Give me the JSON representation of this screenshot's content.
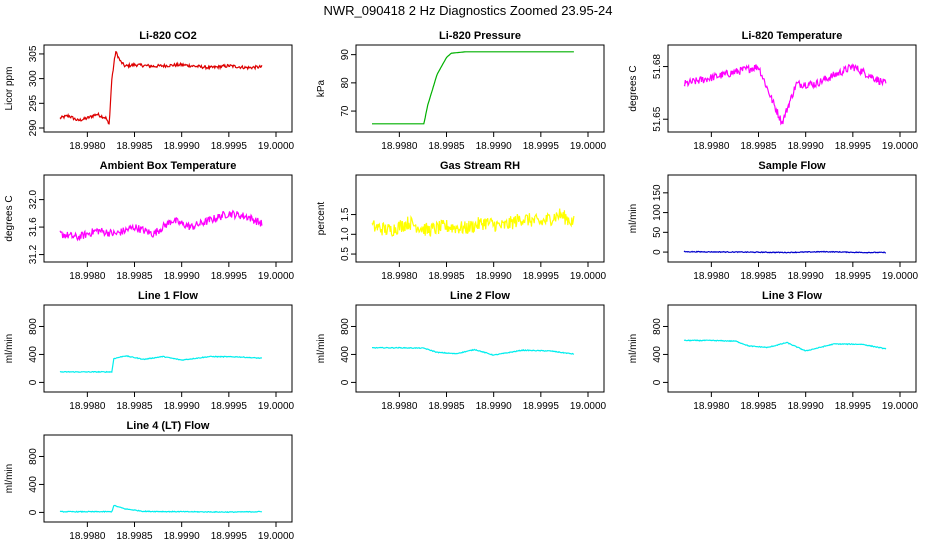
{
  "figure_title": "NWR_090418  2 Hz Diagnostics Zoomed 23.95-24",
  "colors": {
    "red": "#dd0000",
    "green": "#00b000",
    "magenta": "#ff00ff",
    "yellow": "#ffff00",
    "blue": "#0000cc",
    "cyan": "#00eeee"
  },
  "chart_data": [
    {
      "type": "line",
      "title": "Li-820 CO2",
      "ylabel": "Licor ppm",
      "color": "red",
      "xlim": [
        18.99771,
        19.0
      ],
      "ylim": [
        290,
        306
      ],
      "xticks": [
        "18.9980",
        "18.9985",
        "18.9990",
        "18.9995",
        "19.0000"
      ],
      "yticks": [
        "290",
        "295",
        "300",
        "305"
      ],
      "x": [
        18.99771,
        18.9978,
        18.9979,
        18.998,
        18.9981,
        18.9982,
        18.99823,
        18.99826,
        18.9983,
        18.99835,
        18.9984,
        18.9985,
        18.9987,
        18.999,
        18.9993,
        18.9995,
        18.9997,
        18.99985
      ],
      "y": [
        292,
        292.5,
        291.5,
        292,
        292.8,
        292,
        290.5,
        300,
        305.5,
        303.5,
        302.5,
        302.8,
        302.5,
        302.8,
        302.2,
        302.6,
        302.2,
        302.4
      ]
    },
    {
      "type": "line",
      "title": "Li-820 Pressure",
      "ylabel": "kPa",
      "color": "green",
      "xlim": [
        18.99771,
        19.0
      ],
      "ylim": [
        64,
        92
      ],
      "xticks": [
        "18.9980",
        "18.9985",
        "18.9990",
        "18.9995",
        "19.0000"
      ],
      "yticks": [
        "70",
        "80",
        "90"
      ],
      "x": [
        18.99771,
        18.998,
        18.99826,
        18.9983,
        18.9984,
        18.9985,
        18.99855,
        18.9987,
        18.999,
        18.9995,
        18.99985
      ],
      "y": [
        65.5,
        65.5,
        65.5,
        72,
        83,
        89,
        90.5,
        91,
        91,
        91,
        91
      ]
    },
    {
      "type": "line",
      "title": "Li-820 Temperature",
      "ylabel": "degrees C",
      "color": "magenta",
      "xlim": [
        18.99771,
        19.0
      ],
      "ylim": [
        51.645,
        51.69
      ],
      "xticks": [
        "18.9980",
        "18.9985",
        "18.9990",
        "18.9995",
        "19.0000"
      ],
      "yticks": [
        "51.65",
        "51.68"
      ],
      "x": [
        18.99771,
        18.9985,
        18.99865,
        18.99875,
        18.9989,
        18.9991,
        18.9995,
        18.99985
      ],
      "y": [
        51.67,
        51.68,
        51.66,
        51.648,
        51.67,
        51.67,
        51.68,
        51.67
      ]
    },
    {
      "type": "line",
      "title": "Ambient Box Temperature",
      "ylabel": "degrees C",
      "color": "magenta",
      "xlim": [
        18.99771,
        19.0
      ],
      "ylim": [
        31.15,
        32.3
      ],
      "xticks": [
        "18.9980",
        "18.9985",
        "18.9990",
        "18.9995",
        "19.0000"
      ],
      "yticks": [
        "31.2",
        "31.6",
        "32.0"
      ],
      "x": [
        18.99771,
        18.9979,
        18.9981,
        18.9983,
        18.9985,
        18.9987,
        18.9989,
        18.9991,
        18.9993,
        18.9995,
        18.9997,
        18.99985
      ],
      "y": [
        31.5,
        31.45,
        31.55,
        31.5,
        31.6,
        31.5,
        31.7,
        31.6,
        31.7,
        31.8,
        31.75,
        31.65
      ]
    },
    {
      "type": "line",
      "title": "Gas Stream RH",
      "ylabel": "percent",
      "color": "yellow",
      "xlim": [
        18.99771,
        19.0
      ],
      "ylim": [
        0.4,
        2.4
      ],
      "xticks": [
        "18.9980",
        "18.9985",
        "18.9990",
        "18.9995",
        "19.0000"
      ],
      "yticks": [
        "0.5",
        "1.0",
        "1.5"
      ],
      "x": [
        18.99771,
        18.9979,
        18.9981,
        18.9983,
        18.9985,
        18.9987,
        18.9989,
        18.9991,
        18.9993,
        18.9995,
        18.9997,
        18.99985
      ],
      "y": [
        1.2,
        1.1,
        1.3,
        1.1,
        1.2,
        1.15,
        1.3,
        1.2,
        1.4,
        1.3,
        1.5,
        1.3
      ]
    },
    {
      "type": "line",
      "title": "Sample Flow",
      "ylabel": "ml/min",
      "color": "blue",
      "xlim": [
        18.99771,
        19.0
      ],
      "ylim": [
        -15,
        185
      ],
      "xticks": [
        "18.9980",
        "18.9985",
        "18.9990",
        "18.9995",
        "19.0000"
      ],
      "yticks": [
        "0",
        "50",
        "100",
        "150"
      ],
      "x": [
        18.99771,
        18.9983,
        18.9988,
        18.9992,
        18.9996,
        18.99985
      ],
      "y": [
        1,
        0,
        -1,
        1,
        -1,
        -1
      ]
    },
    {
      "type": "line",
      "title": "Line 1 Flow",
      "ylabel": "ml/min",
      "color": "cyan",
      "xlim": [
        18.99771,
        19.0
      ],
      "ylim": [
        -80,
        1050
      ],
      "xticks": [
        "18.9980",
        "18.9985",
        "18.9990",
        "18.9995",
        "19.0000"
      ],
      "yticks": [
        "0",
        "400",
        "800"
      ],
      "x": [
        18.99771,
        18.998,
        18.99826,
        18.99828,
        18.9984,
        18.9986,
        18.9988,
        18.999,
        18.9993,
        18.9996,
        18.99985
      ],
      "y": [
        150,
        150,
        150,
        340,
        380,
        330,
        370,
        320,
        370,
        365,
        345
      ]
    },
    {
      "type": "line",
      "title": "Line 2 Flow",
      "ylabel": "ml/min",
      "color": "cyan",
      "xlim": [
        18.99771,
        19.0
      ],
      "ylim": [
        -80,
        1050
      ],
      "xticks": [
        "18.9980",
        "18.9985",
        "18.9990",
        "18.9995",
        "19.0000"
      ],
      "yticks": [
        "0",
        "400",
        "800"
      ],
      "x": [
        18.99771,
        18.998,
        18.99826,
        18.9984,
        18.9986,
        18.9988,
        18.999,
        18.9993,
        18.9996,
        18.99985
      ],
      "y": [
        495,
        495,
        490,
        430,
        410,
        470,
        390,
        460,
        450,
        405
      ]
    },
    {
      "type": "line",
      "title": "Line 3 Flow",
      "ylabel": "ml/min",
      "color": "cyan",
      "xlim": [
        18.99771,
        19.0
      ],
      "ylim": [
        -80,
        1050
      ],
      "xticks": [
        "18.9980",
        "18.9985",
        "18.9990",
        "18.9995",
        "19.0000"
      ],
      "yticks": [
        "0",
        "400",
        "800"
      ],
      "x": [
        18.99771,
        18.998,
        18.99826,
        18.9984,
        18.9986,
        18.9988,
        18.999,
        18.9993,
        18.9996,
        18.99985
      ],
      "y": [
        600,
        600,
        590,
        520,
        500,
        570,
        450,
        550,
        545,
        480
      ]
    },
    {
      "type": "line",
      "title": "Line 4 (LT) Flow",
      "ylabel": "ml/min",
      "color": "cyan",
      "xlim": [
        18.99771,
        19.0
      ],
      "ylim": [
        -80,
        1050
      ],
      "xticks": [
        "18.9980",
        "18.9985",
        "18.9990",
        "18.9995",
        "19.0000"
      ],
      "yticks": [
        "0",
        "400",
        "800"
      ],
      "x": [
        18.99771,
        18.998,
        18.99826,
        18.99828,
        18.9984,
        18.9986,
        18.999,
        18.9995,
        18.99985
      ],
      "y": [
        10,
        10,
        10,
        100,
        50,
        15,
        10,
        5,
        10
      ]
    }
  ]
}
